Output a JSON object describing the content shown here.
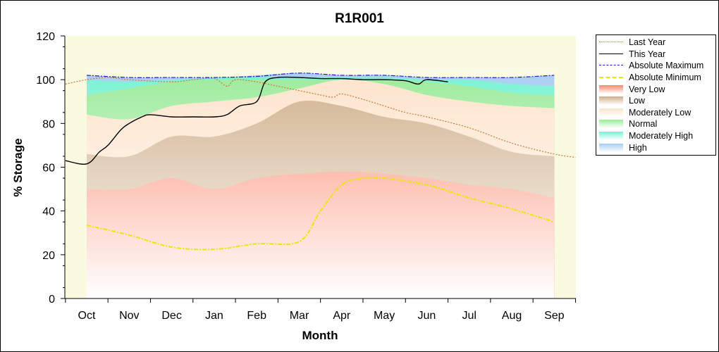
{
  "chart_data": {
    "type": "area",
    "title": "R1R001",
    "xlabel": "Month",
    "ylabel": "% Storage",
    "ylim": [
      0,
      120
    ],
    "yticks": [
      0,
      20,
      40,
      60,
      80,
      100,
      120
    ],
    "categories": [
      "Oct",
      "Nov",
      "Dec",
      "Jan",
      "Feb",
      "Mar",
      "Apr",
      "May",
      "Jun",
      "Jul",
      "Aug",
      "Sep"
    ],
    "legend_position": "right",
    "bands": [
      {
        "name": "Very Low",
        "color": "#fa7a5a",
        "values": [
          50,
          50,
          55,
          50,
          55,
          57,
          58,
          57,
          55,
          52,
          50,
          46
        ]
      },
      {
        "name": "Low",
        "color": "#c8a47a",
        "values": [
          66,
          65,
          74,
          74,
          80,
          90,
          88,
          83,
          80,
          74,
          67,
          65
        ]
      },
      {
        "name": "Moderately Low",
        "color": "#fde0c4",
        "values": [
          84,
          82,
          88,
          90,
          92,
          96,
          100,
          98,
          93,
          90,
          88,
          87
        ]
      },
      {
        "name": "Normal",
        "color": "#8ee88e",
        "values": [
          93,
          96,
          99,
          100,
          100,
          100,
          100,
          100,
          99,
          97,
          94,
          93
        ]
      },
      {
        "name": "Moderately High",
        "color": "#66f0cc",
        "values": [
          100,
          99,
          100,
          101,
          101,
          101,
          101,
          101,
          100,
          100,
          98,
          97
        ]
      },
      {
        "name": "High",
        "color": "#9ec6f0",
        "values": [
          102,
          101,
          101,
          101,
          102,
          103,
          102,
          102,
          101,
          101,
          101,
          102
        ]
      }
    ],
    "series": [
      {
        "name": "Last Year",
        "color": "#c87834",
        "style": "dotted",
        "x": [
          -0.5,
          0,
          0.5,
          1,
          2,
          2.5,
          3,
          3.3,
          3.5,
          4,
          4.5,
          5,
          5.5,
          5.8,
          6,
          6.5,
          7,
          7.5,
          8,
          9,
          10,
          11,
          11.5
        ],
        "y": [
          98,
          100,
          101,
          100,
          99,
          100,
          100.5,
          97,
          100,
          99,
          97,
          95,
          93,
          92,
          93.5,
          91,
          88,
          85,
          83,
          78,
          71,
          66,
          64.5
        ]
      },
      {
        "name": "This Year",
        "color": "#000000",
        "style": "solid",
        "x": [
          -0.5,
          0,
          0.3,
          0.5,
          0.8,
          1,
          1.3,
          1.5,
          2,
          2.5,
          3,
          3.3,
          3.6,
          4,
          4.2,
          4.5,
          5,
          5.5,
          6,
          6.5,
          7,
          7.5,
          7.8,
          8,
          8.5
        ],
        "y": [
          63,
          61.5,
          67,
          70,
          77,
          80,
          83,
          84,
          83,
          83,
          83,
          84,
          88,
          90,
          99,
          101,
          101,
          100.5,
          100.5,
          100,
          100,
          99.5,
          98,
          100,
          99
        ]
      },
      {
        "name": "Absolute Maximum",
        "color": "#1c1cc8",
        "style": "dashdot",
        "x": [
          0,
          1,
          2,
          3,
          4,
          5,
          6,
          7,
          8,
          9,
          10,
          11
        ],
        "y": [
          102,
          101,
          101,
          101,
          101.5,
          103,
          102,
          102,
          101,
          101,
          101,
          102
        ]
      },
      {
        "name": "Absolute Minimum",
        "color": "#e8e800",
        "style": "dashdot",
        "x": [
          0,
          1,
          2,
          3,
          4,
          5,
          5.5,
          6,
          6.5,
          7,
          8,
          9,
          10,
          11
        ],
        "y": [
          33.5,
          29,
          23.5,
          22.5,
          25,
          26,
          40,
          52,
          55,
          55,
          52,
          46,
          41,
          35
        ]
      }
    ],
    "legend": [
      {
        "name": "Last Year",
        "kind": "line",
        "color": "#c87834",
        "style": "dotted"
      },
      {
        "name": "This Year",
        "kind": "line",
        "color": "#000000",
        "style": "solid"
      },
      {
        "name": "Absolute Maximum",
        "kind": "line",
        "color": "#1c1cc8",
        "style": "dashdot"
      },
      {
        "name": "Absolute Minimum",
        "kind": "line",
        "color": "#e8e800",
        "style": "dashdot"
      },
      {
        "name": "Very Low",
        "kind": "band",
        "color": "#fa7a5a"
      },
      {
        "name": "Low",
        "kind": "band",
        "color": "#c8a47a"
      },
      {
        "name": "Moderately Low",
        "kind": "band",
        "color": "#fde0c4"
      },
      {
        "name": "Normal",
        "kind": "band",
        "color": "#8ee88e"
      },
      {
        "name": "Moderately High",
        "kind": "band",
        "color": "#66f0cc"
      },
      {
        "name": "High",
        "kind": "band",
        "color": "#9ec6f0"
      }
    ],
    "plot_background": "#fafae0"
  }
}
